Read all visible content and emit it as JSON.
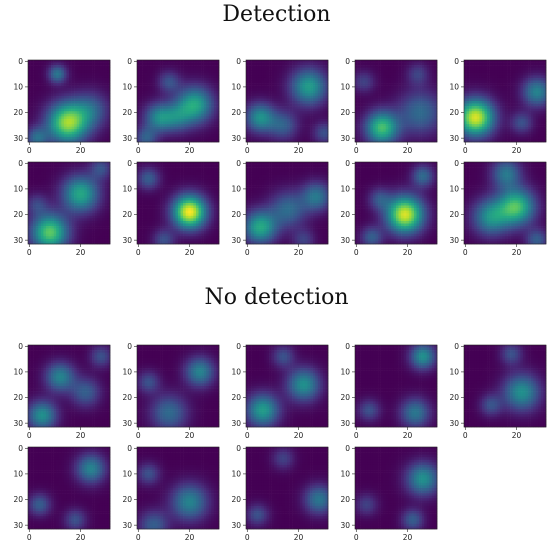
{
  "sections": {
    "detection_title": "Detection",
    "no_detection_title": "No detection"
  },
  "chart_data": {
    "type": "heatmap",
    "colormap": "viridis",
    "grid_size": 32,
    "xticks": [
      0,
      20
    ],
    "yticks": [
      0,
      10,
      20,
      30
    ],
    "xlim": [
      0,
      32
    ],
    "ylim": [
      32,
      0
    ],
    "panels": [
      {
        "group": "Detection",
        "row": 0,
        "col": 0,
        "blobs": [
          [
            15,
            24,
            5.5,
            0.85
          ],
          [
            11,
            5,
            2.5,
            0.4
          ],
          [
            24,
            19,
            5,
            0.3
          ],
          [
            3,
            30,
            3,
            0.35
          ]
        ]
      },
      {
        "group": "Detection",
        "row": 0,
        "col": 1,
        "blobs": [
          [
            22,
            17,
            5,
            0.6
          ],
          [
            8,
            22,
            4,
            0.45
          ],
          [
            15,
            22,
            4,
            0.3
          ],
          [
            12,
            8,
            3,
            0.25
          ],
          [
            3,
            30,
            3,
            0.3
          ]
        ]
      },
      {
        "group": "Detection",
        "row": 0,
        "col": 2,
        "blobs": [
          [
            24,
            10,
            5,
            0.55
          ],
          [
            5,
            22,
            4,
            0.5
          ],
          [
            14,
            25,
            4,
            0.3
          ],
          [
            30,
            28,
            3,
            0.25
          ]
        ]
      },
      {
        "group": "Detection",
        "row": 0,
        "col": 3,
        "blobs": [
          [
            10,
            26,
            4.5,
            0.7
          ],
          [
            25,
            20,
            6,
            0.35
          ],
          [
            3,
            8,
            3,
            0.2
          ],
          [
            24,
            5,
            3,
            0.2
          ]
        ]
      },
      {
        "group": "Detection",
        "row": 0,
        "col": 4,
        "blobs": [
          [
            4,
            22,
            5,
            0.95
          ],
          [
            28,
            12,
            4,
            0.45
          ],
          [
            22,
            24,
            3,
            0.25
          ]
        ]
      },
      {
        "group": "Detection",
        "row": 1,
        "col": 0,
        "blobs": [
          [
            8,
            27,
            5,
            0.75
          ],
          [
            20,
            12,
            5,
            0.6
          ],
          [
            3,
            16,
            3,
            0.2
          ],
          [
            28,
            2,
            3,
            0.25
          ]
        ]
      },
      {
        "group": "Detection",
        "row": 1,
        "col": 1,
        "blobs": [
          [
            20,
            19,
            4.5,
            1.0
          ],
          [
            10,
            30,
            3,
            0.25
          ],
          [
            4,
            6,
            3,
            0.3
          ]
        ]
      },
      {
        "group": "Detection",
        "row": 1,
        "col": 2,
        "blobs": [
          [
            5,
            25,
            4.5,
            0.6
          ],
          [
            16,
            18,
            5,
            0.35
          ],
          [
            27,
            13,
            4,
            0.4
          ],
          [
            22,
            30,
            3,
            0.2
          ]
        ]
      },
      {
        "group": "Detection",
        "row": 1,
        "col": 3,
        "blobs": [
          [
            19,
            20,
            5,
            0.95
          ],
          [
            9,
            14,
            3,
            0.25
          ],
          [
            26,
            5,
            3,
            0.35
          ],
          [
            6,
            29,
            3,
            0.3
          ]
        ]
      },
      {
        "group": "Detection",
        "row": 1,
        "col": 4,
        "blobs": [
          [
            20,
            17,
            5,
            0.7
          ],
          [
            10,
            21,
            5,
            0.5
          ],
          [
            16,
            4,
            4,
            0.4
          ],
          [
            28,
            30,
            3,
            0.3
          ]
        ]
      },
      {
        "group": "No detection",
        "row": 0,
        "col": 0,
        "blobs": [
          [
            12,
            12,
            4,
            0.45
          ],
          [
            5,
            27,
            4,
            0.5
          ],
          [
            22,
            18,
            4,
            0.3
          ],
          [
            28,
            4,
            3,
            0.25
          ]
        ]
      },
      {
        "group": "No detection",
        "row": 0,
        "col": 1,
        "blobs": [
          [
            24,
            10,
            4,
            0.45
          ],
          [
            12,
            26,
            5,
            0.35
          ],
          [
            4,
            14,
            3,
            0.25
          ]
        ]
      },
      {
        "group": "No detection",
        "row": 0,
        "col": 2,
        "blobs": [
          [
            6,
            25,
            4.5,
            0.55
          ],
          [
            22,
            15,
            4.5,
            0.5
          ],
          [
            14,
            4,
            3,
            0.25
          ]
        ]
      },
      {
        "group": "No detection",
        "row": 0,
        "col": 3,
        "blobs": [
          [
            26,
            4,
            3.5,
            0.5
          ],
          [
            23,
            26,
            4,
            0.4
          ],
          [
            5,
            25,
            3,
            0.25
          ]
        ]
      },
      {
        "group": "No detection",
        "row": 0,
        "col": 4,
        "blobs": [
          [
            22,
            18,
            5,
            0.5
          ],
          [
            10,
            23,
            3,
            0.25
          ],
          [
            18,
            3,
            3,
            0.25
          ]
        ]
      },
      {
        "group": "No detection",
        "row": 1,
        "col": 0,
        "blobs": [
          [
            24,
            8,
            4,
            0.45
          ],
          [
            4,
            22,
            3,
            0.3
          ],
          [
            18,
            28,
            3,
            0.25
          ]
        ]
      },
      {
        "group": "No detection",
        "row": 1,
        "col": 1,
        "blobs": [
          [
            20,
            21,
            5,
            0.45
          ],
          [
            6,
            30,
            4,
            0.3
          ],
          [
            4,
            10,
            3,
            0.25
          ]
        ]
      },
      {
        "group": "No detection",
        "row": 1,
        "col": 2,
        "blobs": [
          [
            28,
            20,
            4,
            0.4
          ],
          [
            4,
            26,
            3,
            0.25
          ],
          [
            14,
            4,
            3,
            0.2
          ]
        ]
      },
      {
        "group": "No detection",
        "row": 1,
        "col": 3,
        "blobs": [
          [
            26,
            12,
            4.5,
            0.5
          ],
          [
            22,
            28,
            3,
            0.3
          ],
          [
            4,
            22,
            3,
            0.2
          ]
        ]
      }
    ]
  }
}
